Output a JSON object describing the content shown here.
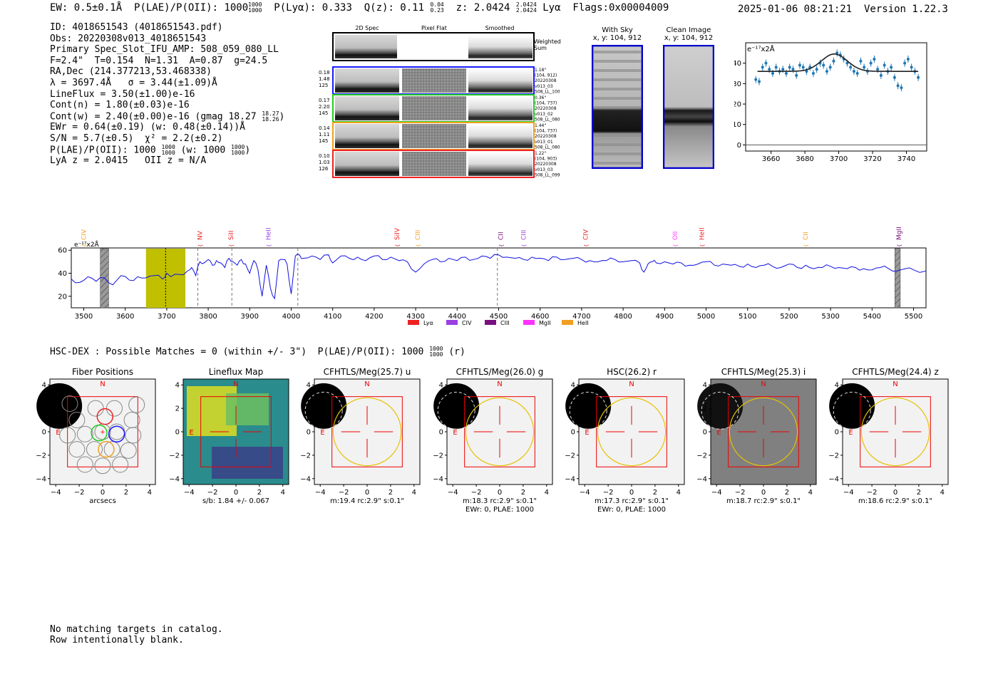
{
  "header": {
    "ew": "EW: 0.5±0.1Å",
    "plae_label": "P(LAE)/P(OII): 1000",
    "plae_hi": "1000",
    "plae_lo": "1000",
    "plya": "P(Lyα): 0.333",
    "qz": "Q(z): 0.11",
    "qz_hi": "0.04",
    "qz_lo": "0.23",
    "z": "z: 2.0424",
    "z_hi": "2.0424",
    "z_lo": "2.0424",
    "z_line": "Lyα",
    "flags": "Flags:0x00004009",
    "timestamp": "2025-01-06 08:21:21",
    "version": "Version 1.22.3"
  },
  "info": {
    "id": "ID: 4018651543 (4018651543.pdf)",
    "obs": "Obs: 20220308v013_4018651543",
    "slot": "Primary Spec_Slot_IFU_AMP: 508_059_080_LL",
    "params": "F=2.4\"  T=0.154  N=1.31  A=0.87  g=24.5",
    "radec": "RA,Dec (214.377213,53.468338)",
    "lambda": "λ = 3697.4Å   σ = 3.44(±1.09)Å",
    "lineflux": "LineFlux = 3.50(±1.00)e-16",
    "contn": "Cont(n) = 1.80(±0.03)e-16",
    "contw": "Cont(w) = 2.40(±0.00)e-16 (gmag 18.27",
    "contw_hi": "18.27",
    "contw_lo": "18.26",
    "ewr": "EWr = 0.64(±0.19) (w: 0.48(±0.14))Å",
    "sn": "S/N = 5.7(±0.5)  χ² = 2.2(±0.2)",
    "plae": "P(LAE)/P(OII): 1000",
    "plae_hi": "1000",
    "plae_lo": "1000",
    "plae_w": "(w: 1000",
    "plae_w_hi": "1000",
    "plae_w_lo": "1000",
    "lya_z": "LyA z = 2.0415   OII z = N/A"
  },
  "spec2d": {
    "col_titles": [
      "2D Spec",
      "Pixel Flat",
      "Smoothed"
    ],
    "weighted_label": "Weighted Sum",
    "rows": [
      {
        "stats": [
          "0.18",
          "1.48",
          "125"
        ],
        "color": "#1a1aff",
        "meta": [
          "1.18\"",
          "(104, 912)",
          "20220308",
          "v013_03",
          "508_LL_100"
        ]
      },
      {
        "stats": [
          "0.17",
          "2.20",
          "145"
        ],
        "color": "#22cc22",
        "meta": [
          "0.36\"",
          "(104, 737)",
          "20220308",
          "v013_02",
          "508_LL_080"
        ]
      },
      {
        "stats": [
          "0.14",
          "1.11",
          "145"
        ],
        "color": "#f0a020",
        "meta": [
          "1.44\"",
          "(104, 737)",
          "20220308",
          "v013_01",
          "508_LL_080"
        ]
      },
      {
        "stats": [
          "0.10",
          "1.03",
          "126"
        ],
        "color": "#ee2222",
        "meta": [
          "1.22\"",
          "(104, 903)",
          "20220308",
          "v013_03",
          "508_LL_099"
        ]
      }
    ]
  },
  "cutouts": {
    "with_sky": "With Sky",
    "with_sky_xy": "x, y: 104, 912",
    "clean": "Clean Image",
    "clean_xy": "x, y: 104, 912"
  },
  "zoom_plot": {
    "unit": "e⁻¹⁷x2Å",
    "x_ticks": [
      "3660",
      "3680",
      "3700",
      "3720",
      "3740"
    ],
    "y_ticks": [
      "0",
      "10",
      "20",
      "30",
      "40"
    ]
  },
  "full_spectrum": {
    "unit": "e⁻¹⁷x2Å",
    "x_ticks": [
      "3500",
      "3600",
      "3700",
      "3800",
      "3900",
      "4000",
      "4100",
      "4200",
      "4300",
      "4400",
      "4500",
      "4600",
      "4700",
      "4800",
      "4900",
      "5000",
      "5100",
      "5200",
      "5300",
      "5400",
      "5500"
    ],
    "y_ticks": [
      "20",
      "40",
      "60"
    ],
    "lines": [
      {
        "name": "CIV",
        "wave": 3500,
        "color": "#f0a020"
      },
      {
        "name": "NV",
        "wave": 3780,
        "color": "#ee2222"
      },
      {
        "name": "SiII",
        "wave": 3855,
        "color": "#ee2222"
      },
      {
        "name": "HeII",
        "wave": 3945,
        "color": "#9b3fe0"
      },
      {
        "name": "SiIV",
        "wave": 4255,
        "color": "#ee2222"
      },
      {
        "name": "CIII",
        "wave": 4305,
        "color": "#f0a020"
      },
      {
        "name": "CII",
        "wave": 4505,
        "color": "#7a1080"
      },
      {
        "name": "CIII",
        "wave": 4560,
        "color": "#9b3fe0"
      },
      {
        "name": "CIV",
        "wave": 4710,
        "color": "#ee2222"
      },
      {
        "name": "OII",
        "wave": 4925,
        "color": "#ff33ff"
      },
      {
        "name": "HeII",
        "wave": 4990,
        "color": "#ee2222"
      },
      {
        "name": "CII",
        "wave": 5240,
        "color": "#f0a020"
      },
      {
        "name": "MgII",
        "wave": 5465,
        "color": "#7a1080"
      }
    ],
    "legend": [
      {
        "name": "Lyα",
        "color": "#ee2222"
      },
      {
        "name": "CIV",
        "color": "#9b3fe0"
      },
      {
        "name": "CIII",
        "color": "#7a1080"
      },
      {
        "name": "MgII",
        "color": "#ff33ff"
      },
      {
        "name": "HeII",
        "color": "#f0a020"
      }
    ]
  },
  "hsc": {
    "line": "HSC-DEX : Possible Matches = 0 (within +/- 3\")  P(LAE)/P(OII): 1000",
    "line_hi": "1000",
    "line_lo": "1000",
    "line_suffix": "(r)"
  },
  "thumbnails": [
    {
      "title": "Fiber Positions",
      "caption": "arcsecs",
      "caption2": ""
    },
    {
      "title": "Lineflux Map",
      "caption": "s/b: 1.84 +/- 0.067",
      "caption2": ""
    },
    {
      "title": "CFHTLS/Meg(25.7) u",
      "caption": "m:19.4 rc:2.9\"  s:0.1\"",
      "caption2": ""
    },
    {
      "title": "CFHTLS/Meg(26.0) g",
      "caption": "m:18.3 rc:2.9\"  s:0.1\"",
      "caption2": "EWr: 0, PLAE: 1000"
    },
    {
      "title": "HSC(26.2) r",
      "caption": "m:17.3 rc:2.9\"  s:0.1\"",
      "caption2": "EWr: 0, PLAE: 1000"
    },
    {
      "title": "CFHTLS/Meg(25.3) i",
      "caption": "m:18.7 rc:2.9\"  s:0.1\"",
      "caption2": ""
    },
    {
      "title": "CFHTLS/Meg(24.4) z",
      "caption": "m:18.6 rc:2.9\"  s:0.1\"",
      "caption2": ""
    }
  ],
  "thumb_axes": {
    "ticks": [
      "−4",
      "−2",
      "0",
      "2",
      "4"
    ],
    "north": "N",
    "east": "E"
  },
  "bottom_note": {
    "line1": "No matching targets in catalog.",
    "line2": "Row intentionally blank."
  },
  "chart_data": [
    {
      "type": "scatter",
      "title": "",
      "xlabel": "",
      "ylabel": "e⁻¹⁷x2Å",
      "xlim": [
        3645,
        3752
      ],
      "ylim": [
        -3,
        50
      ],
      "x": [
        3651,
        3653,
        3655,
        3657,
        3659,
        3661,
        3663,
        3665,
        3667,
        3669,
        3671,
        3673,
        3675,
        3677,
        3679,
        3681,
        3683,
        3685,
        3687,
        3689,
        3691,
        3693,
        3695,
        3697,
        3699,
        3701,
        3703,
        3705,
        3707,
        3709,
        3711,
        3713,
        3715,
        3717,
        3719,
        3721,
        3723,
        3725,
        3727,
        3729,
        3731,
        3733,
        3735,
        3737,
        3739,
        3741,
        3743,
        3745,
        3747
      ],
      "y": [
        32,
        31,
        38,
        40,
        37,
        35,
        38,
        36,
        37,
        35,
        38,
        37,
        34,
        39,
        38,
        36,
        38,
        35,
        37,
        40,
        39,
        36,
        38,
        41,
        45,
        44,
        42,
        40,
        38,
        36,
        35,
        41,
        38,
        36,
        40,
        42,
        37,
        34,
        39,
        36,
        38,
        33,
        29,
        28,
        40,
        42,
        38,
        36,
        33
      ],
      "fit": {
        "continuum": 36,
        "center": 3697.4,
        "sigma": 3.44,
        "amplitude": 8.5
      }
    },
    {
      "type": "line",
      "title": "",
      "xlabel": "",
      "ylabel": "e⁻¹⁷x2Å",
      "xlim": [
        3470,
        5530
      ],
      "ylim": [
        10,
        62
      ],
      "highlight_range": [
        3650,
        3745
      ],
      "marker_wave": 3697.4,
      "grey_bands": [
        [
          3540,
          3560
        ],
        [
          5455,
          5468
        ]
      ],
      "dashed_lines": [
        3775,
        3857,
        4016,
        4497
      ],
      "x": [
        3470,
        3490,
        3510,
        3530,
        3550,
        3570,
        3590,
        3610,
        3630,
        3650,
        3670,
        3690,
        3700,
        3710,
        3730,
        3750,
        3760,
        3770,
        3780,
        3790,
        3800,
        3810,
        3820,
        3830,
        3840,
        3850,
        3860,
        3870,
        3880,
        3890,
        3900,
        3910,
        3920,
        3930,
        3940,
        3950,
        3960,
        3970,
        3980,
        3990,
        4000,
        4010,
        4020,
        4030,
        4050,
        4070,
        4090,
        4100,
        4120,
        4140,
        4160,
        4180,
        4200,
        4220,
        4240,
        4260,
        4280,
        4300,
        4320,
        4340,
        4360,
        4380,
        4400,
        4420,
        4440,
        4460,
        4480,
        4500,
        4520,
        4540,
        4560,
        4580,
        4600,
        4620,
        4640,
        4660,
        4680,
        4700,
        4720,
        4740,
        4760,
        4780,
        4800,
        4820,
        4840,
        4850,
        4860,
        4870,
        4880,
        4900,
        4920,
        4940,
        4960,
        4980,
        5000,
        5020,
        5040,
        5060,
        5080,
        5100,
        5120,
        5140,
        5160,
        5180,
        5200,
        5220,
        5240,
        5260,
        5280,
        5300,
        5320,
        5340,
        5360,
        5380,
        5400,
        5420,
        5440,
        5460,
        5480,
        5500,
        5530
      ],
      "y": [
        35,
        32,
        37,
        33,
        36,
        30,
        38,
        34,
        37,
        36,
        38,
        35,
        40,
        37,
        39,
        42,
        45,
        38,
        50,
        49,
        52,
        47,
        51,
        49,
        45,
        53,
        50,
        47,
        52,
        48,
        40,
        51,
        43,
        20,
        47,
        27,
        18,
        51,
        52,
        48,
        22,
        55,
        56,
        53,
        55,
        52,
        56,
        49,
        55,
        53,
        54,
        51,
        55,
        52,
        54,
        51,
        50,
        41,
        48,
        52,
        50,
        53,
        51,
        54,
        52,
        55,
        53,
        56,
        54,
        53,
        52,
        54,
        53,
        51,
        54,
        52,
        53,
        52,
        51,
        50,
        51,
        52,
        50,
        51,
        49,
        41,
        48,
        50,
        49,
        50,
        48,
        49,
        47,
        48,
        50,
        47,
        48,
        47,
        46,
        48,
        45,
        47,
        46,
        45,
        48,
        45,
        47,
        44,
        45,
        46,
        45,
        44,
        45,
        44,
        43,
        45,
        44,
        42,
        44,
        43,
        42
      ]
    }
  ]
}
